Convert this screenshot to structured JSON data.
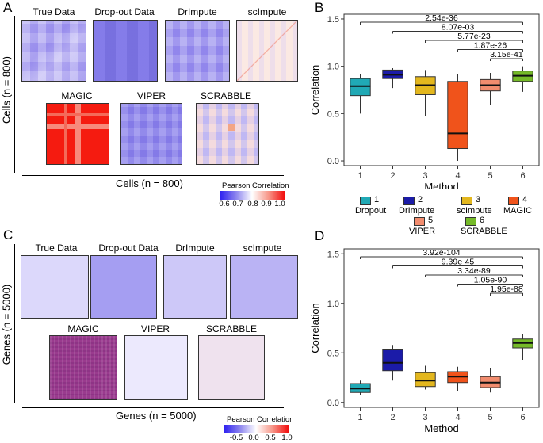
{
  "panels": {
    "a": {
      "letter": "A",
      "titles": [
        "True Data",
        "Drop-out Data",
        "DrImpute",
        "scImpute",
        "MAGIC",
        "VIPER",
        "SCRABBLE"
      ],
      "ylabel": "Cells (n = 800)",
      "xlabel": "Cells (n = 800)",
      "colorbar": {
        "title": "Pearson Correlation",
        "ticks": [
          "0.6",
          "0.7",
          "0.8",
          "0.9",
          "1.0"
        ]
      }
    },
    "c": {
      "letter": "C",
      "titles": [
        "True Data",
        "Drop-out Data",
        "DrImpute",
        "scImpute",
        "MAGIC",
        "VIPER",
        "SCRABBLE"
      ],
      "ylabel": "Genes (n = 5000)",
      "xlabel": "Genes (n = 5000)",
      "colorbar": {
        "title": "Pearson Correlation",
        "ticks": [
          "-0.5",
          "0.0",
          "0.5",
          "1.0"
        ]
      }
    }
  },
  "legend": {
    "items": [
      {
        "num": "1",
        "name": "Dropout",
        "color": "#20A9B5"
      },
      {
        "num": "2",
        "name": "DrImpute",
        "color": "#1B1BA8"
      },
      {
        "num": "3",
        "name": "scImpute",
        "color": "#E3B71E"
      },
      {
        "num": "4",
        "name": "MAGIC",
        "color": "#F0531B"
      },
      {
        "num": "5",
        "name": "VIPER",
        "color": "#F28C6E"
      },
      {
        "num": "6",
        "name": "SCRABBLE",
        "color": "#75BA28"
      }
    ]
  },
  "chart_data": [
    {
      "panel": "B",
      "type": "box",
      "xlabel": "Method",
      "ylabel": "Correlation",
      "categories": [
        "1",
        "2",
        "3",
        "4",
        "5",
        "6"
      ],
      "ylim": [
        -0.05,
        1.55
      ],
      "yticks": [
        0.0,
        0.5,
        1.0,
        1.5
      ],
      "ytick_labels": [
        "0.0",
        "0.5",
        "1.0",
        "1.5"
      ],
      "boxes": [
        {
          "min": 0.5,
          "q1": 0.69,
          "median": 0.79,
          "q3": 0.87,
          "max": 0.92
        },
        {
          "min": 0.77,
          "q1": 0.87,
          "median": 0.91,
          "q3": 0.96,
          "max": 0.98
        },
        {
          "min": 0.47,
          "q1": 0.7,
          "median": 0.8,
          "q3": 0.89,
          "max": 0.96
        },
        {
          "min": 0.0,
          "q1": 0.13,
          "median": 0.29,
          "q3": 0.84,
          "max": 0.92
        },
        {
          "min": 0.59,
          "q1": 0.74,
          "median": 0.8,
          "q3": 0.86,
          "max": 0.93
        },
        {
          "min": 0.73,
          "q1": 0.84,
          "median": 0.9,
          "q3": 0.95,
          "max": 1.0
        }
      ],
      "comparisons": [
        {
          "from": "1",
          "to": "6",
          "label": "2.54e-36"
        },
        {
          "from": "2",
          "to": "6",
          "label": "8.07e-03"
        },
        {
          "from": "3",
          "to": "6",
          "label": "5.77e-23"
        },
        {
          "from": "4",
          "to": "6",
          "label": "1.87e-26"
        },
        {
          "from": "5",
          "to": "6",
          "label": "3.15e-41"
        }
      ]
    },
    {
      "panel": "D",
      "type": "box",
      "xlabel": "Method",
      "ylabel": "Correlation",
      "categories": [
        "1",
        "2",
        "3",
        "4",
        "5",
        "6"
      ],
      "ylim": [
        -0.05,
        1.55
      ],
      "yticks": [
        0.0,
        0.5,
        1.0,
        1.5
      ],
      "ytick_labels": [
        "0.0",
        "0.5",
        "1.0",
        "1.5"
      ],
      "boxes": [
        {
          "min": 0.07,
          "q1": 0.1,
          "median": 0.14,
          "q3": 0.19,
          "max": 0.22
        },
        {
          "min": 0.22,
          "q1": 0.32,
          "median": 0.4,
          "q3": 0.53,
          "max": 0.58
        },
        {
          "min": 0.13,
          "q1": 0.16,
          "median": 0.22,
          "q3": 0.3,
          "max": 0.37
        },
        {
          "min": 0.11,
          "q1": 0.2,
          "median": 0.26,
          "q3": 0.31,
          "max": 0.36
        },
        {
          "min": 0.1,
          "q1": 0.15,
          "median": 0.2,
          "q3": 0.26,
          "max": 0.35
        },
        {
          "min": 0.43,
          "q1": 0.55,
          "median": 0.6,
          "q3": 0.64,
          "max": 0.69
        }
      ],
      "comparisons": [
        {
          "from": "1",
          "to": "6",
          "label": "3.92e-104"
        },
        {
          "from": "2",
          "to": "6",
          "label": "9.39e-45"
        },
        {
          "from": "3",
          "to": "6",
          "label": "3.34e-89"
        },
        {
          "from": "4",
          "to": "6",
          "label": "1.05e-90"
        },
        {
          "from": "5",
          "to": "6",
          "label": "1.95e-88"
        }
      ]
    }
  ]
}
